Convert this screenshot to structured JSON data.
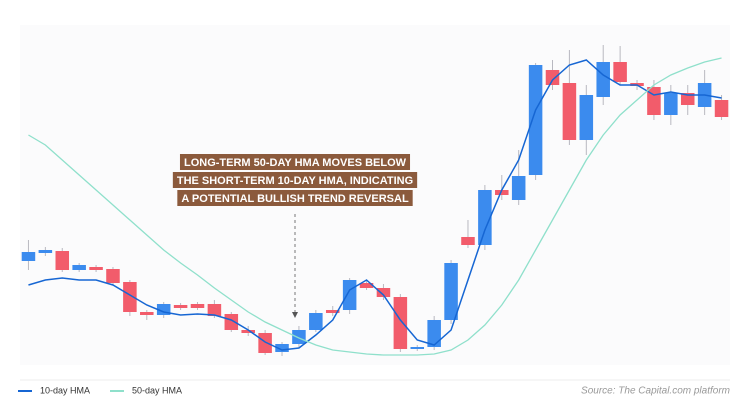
{
  "chart_data": {
    "type": "candlestick",
    "categories": [
      null,
      null,
      null,
      null,
      null,
      null,
      null,
      null,
      null,
      null,
      null,
      null,
      null,
      null,
      null,
      null,
      null,
      null,
      null,
      null,
      null,
      null,
      null,
      null,
      null,
      null,
      null,
      null,
      null,
      null,
      null,
      null,
      null,
      null,
      null,
      null,
      null,
      null,
      null,
      null,
      null,
      null
    ],
    "open": [
      99,
      107,
      109,
      90,
      93,
      91,
      78,
      48,
      45,
      55,
      56,
      56,
      46,
      30,
      27,
      8,
      16,
      30,
      50,
      50,
      77,
      72,
      63,
      11,
      13,
      40,
      123,
      115,
      170,
      160,
      185,
      290,
      277,
      220,
      263,
      298,
      277,
      273,
      245,
      267,
      253,
      260
    ],
    "close": [
      108,
      110,
      90,
      95,
      90,
      77,
      48,
      45,
      56,
      52,
      52,
      44,
      30,
      27,
      7,
      16,
      30,
      47,
      47,
      80,
      72,
      63,
      11,
      13,
      40,
      97,
      115,
      170,
      165,
      184,
      295,
      275,
      220,
      265,
      298,
      278,
      274,
      245,
      267,
      255,
      277,
      243
    ],
    "high": [
      120,
      113,
      112,
      97,
      95,
      93,
      80,
      50,
      58,
      57,
      58,
      60,
      48,
      34,
      30,
      18,
      34,
      50,
      54,
      82,
      80,
      76,
      66,
      15,
      44,
      100,
      140,
      175,
      185,
      210,
      297,
      300,
      310,
      275,
      315,
      314,
      280,
      280,
      275,
      275,
      290,
      265
    ],
    "low": [
      90,
      104,
      88,
      88,
      88,
      75,
      44,
      40,
      42,
      50,
      50,
      42,
      28,
      24,
      5,
      4,
      12,
      28,
      44,
      46,
      70,
      60,
      8,
      9,
      10,
      36,
      112,
      110,
      160,
      155,
      180,
      270,
      215,
      205,
      255,
      275,
      270,
      240,
      235,
      245,
      245,
      240
    ],
    "up_color": "#3b8bee",
    "down_color": "#f25c6b",
    "series": [
      {
        "name": "10-day HMA",
        "color": "#1666d3",
        "values": [
          75,
          80,
          82,
          80,
          80,
          75,
          65,
          55,
          48,
          45,
          46,
          45,
          40,
          30,
          18,
          10,
          12,
          25,
          40,
          70,
          80,
          65,
          40,
          20,
          15,
          30,
          80,
          130,
          170,
          200,
          250,
          280,
          295,
          300,
          285,
          275,
          275,
          265,
          268,
          265,
          265,
          262
        ]
      },
      {
        "name": "50-day HMA",
        "color": "#8fe0cb",
        "values": [
          225,
          215,
          200,
          185,
          170,
          155,
          140,
          125,
          110,
          97,
          85,
          72,
          60,
          48,
          38,
          30,
          22,
          15,
          10,
          8,
          6,
          5,
          5,
          5,
          6,
          10,
          20,
          35,
          55,
          80,
          110,
          140,
          170,
          200,
          225,
          245,
          260,
          275,
          285,
          292,
          298,
          302
        ]
      }
    ],
    "ylim": [
      0,
      320
    ],
    "annotation": [
      "LONG-TERM 50-DAY HMA MOVES BELOW",
      "THE SHORT-TERM 10-DAY HMA, INDICATING",
      "A POTENTIAL BULLISH TREND REVERSAL"
    ],
    "source": "Source: The Capital.com platform"
  }
}
